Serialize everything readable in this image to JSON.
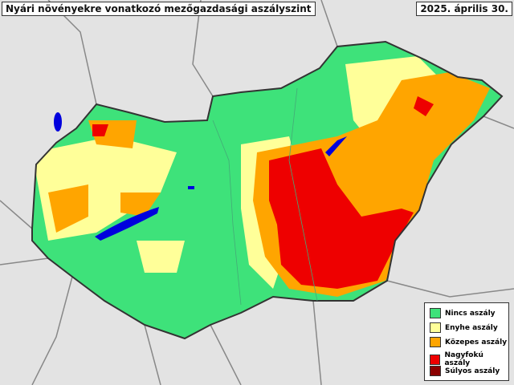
{
  "header": {
    "title": "Nyári növényekre vonatkozó mezőgazdasági aszályszint",
    "date": "2025. április 30."
  },
  "legend": [
    {
      "label": "Nincs aszály",
      "color": "#3ee27a"
    },
    {
      "label": "Enyhe aszály",
      "color": "#ffff99"
    },
    {
      "label": "Közepes aszály",
      "color": "#ffa500"
    },
    {
      "label": "Nagyfokú aszály",
      "color": "#ee0000"
    },
    {
      "label": "Súlyos aszály",
      "color": "#8b0000"
    }
  ]
}
